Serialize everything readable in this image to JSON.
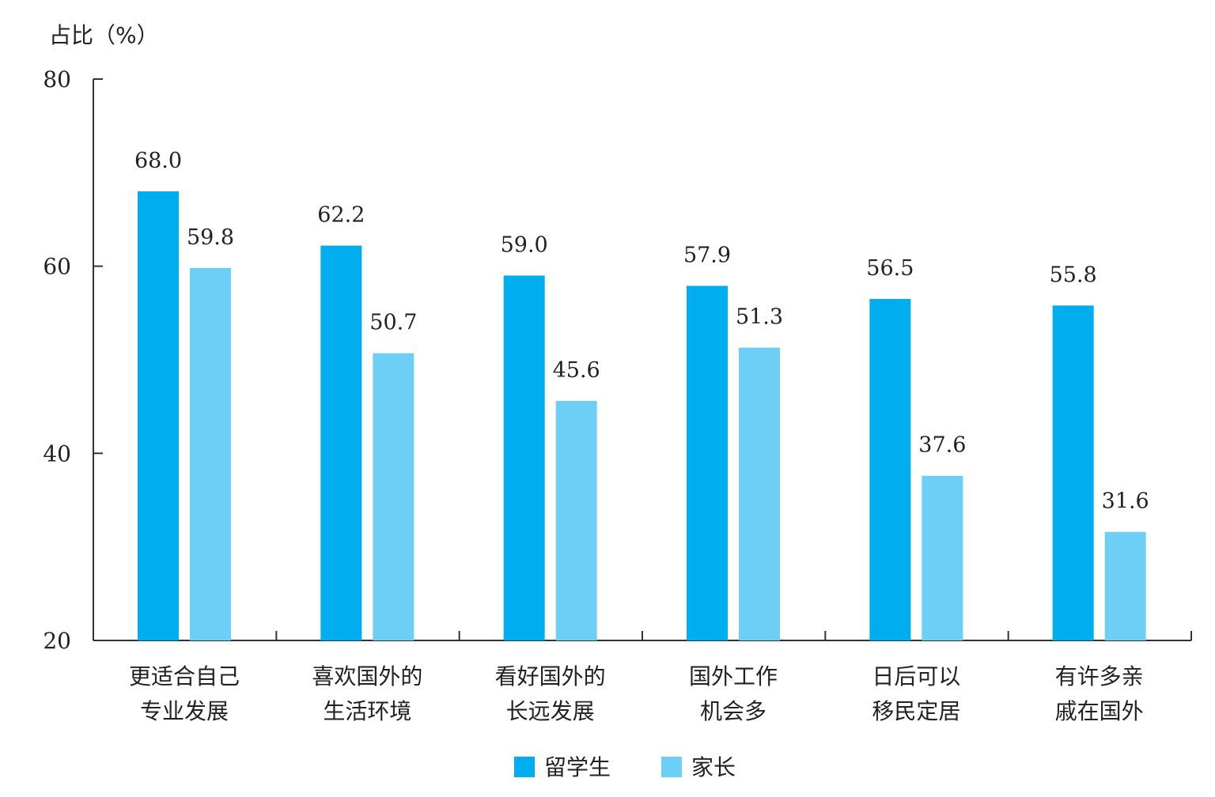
{
  "chart_data": {
    "type": "bar",
    "ylabel": "占比（%）",
    "xlabel": "",
    "ylim": [
      20,
      80
    ],
    "yticks": [
      20,
      40,
      60,
      80
    ],
    "grid": false,
    "legend_position": "bottom-center",
    "categories": [
      [
        "更适合自己",
        "专业发展"
      ],
      [
        "喜欢国外的",
        "生活环境"
      ],
      [
        "看好国外的",
        "长远发展"
      ],
      [
        "国外工作",
        "机会多"
      ],
      [
        "日后可以",
        "移民定居"
      ],
      [
        "有许多亲",
        "戚在国外"
      ]
    ],
    "series": [
      {
        "name": "留学生",
        "color": "#00aeef",
        "values": [
          68.0,
          62.2,
          59.0,
          57.9,
          56.5,
          55.8
        ],
        "labels": [
          "68.0",
          "62.2",
          "59.0",
          "57.9",
          "56.5",
          "55.8"
        ]
      },
      {
        "name": "家长",
        "color": "#6ecff6",
        "values": [
          59.8,
          50.7,
          45.6,
          51.3,
          37.6,
          31.6
        ],
        "labels": [
          "59.8",
          "50.7",
          "45.6",
          "51.3",
          "37.6",
          "31.6"
        ]
      }
    ]
  }
}
